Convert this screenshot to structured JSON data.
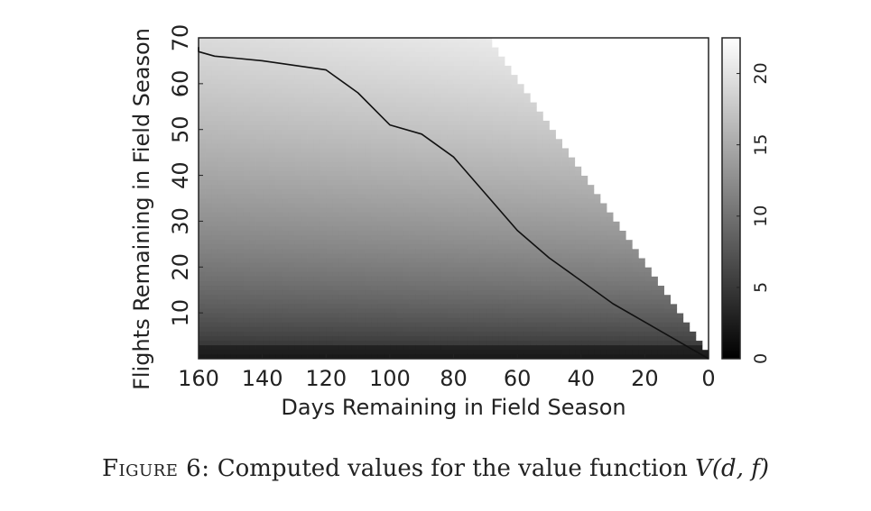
{
  "chart_data": {
    "type": "heatmap",
    "title": "",
    "xlabel": "Days Remaining in Field Season",
    "ylabel": "Flights Remaining in Field Season",
    "x_range": [
      160,
      0
    ],
    "y_range": [
      0,
      70
    ],
    "x_ticks": [
      160,
      140,
      120,
      100,
      80,
      60,
      40,
      20,
      0
    ],
    "y_ticks": [
      10,
      20,
      30,
      40,
      50,
      60,
      70
    ],
    "colorbar": {
      "min": 0,
      "max": 22.5,
      "ticks": [
        0,
        5,
        10,
        15,
        20
      ],
      "colormap": "black-to-white grayscale"
    },
    "undefined_region_color": "#ffffff",
    "undefined_region": "flights > days (upper-right triangle)",
    "policy_line": {
      "x": [
        165,
        160,
        155,
        140,
        120,
        110,
        100,
        90,
        80,
        70,
        60,
        50,
        40,
        30,
        20,
        10,
        0
      ],
      "y": [
        68,
        67,
        66,
        65,
        63,
        58,
        51,
        49,
        44,
        36,
        28,
        22,
        17,
        12,
        8,
        4,
        0
      ]
    },
    "caption": {
      "label": "Figure 6:",
      "text": "Computed values for the value function",
      "math": "V(d, f)"
    }
  }
}
